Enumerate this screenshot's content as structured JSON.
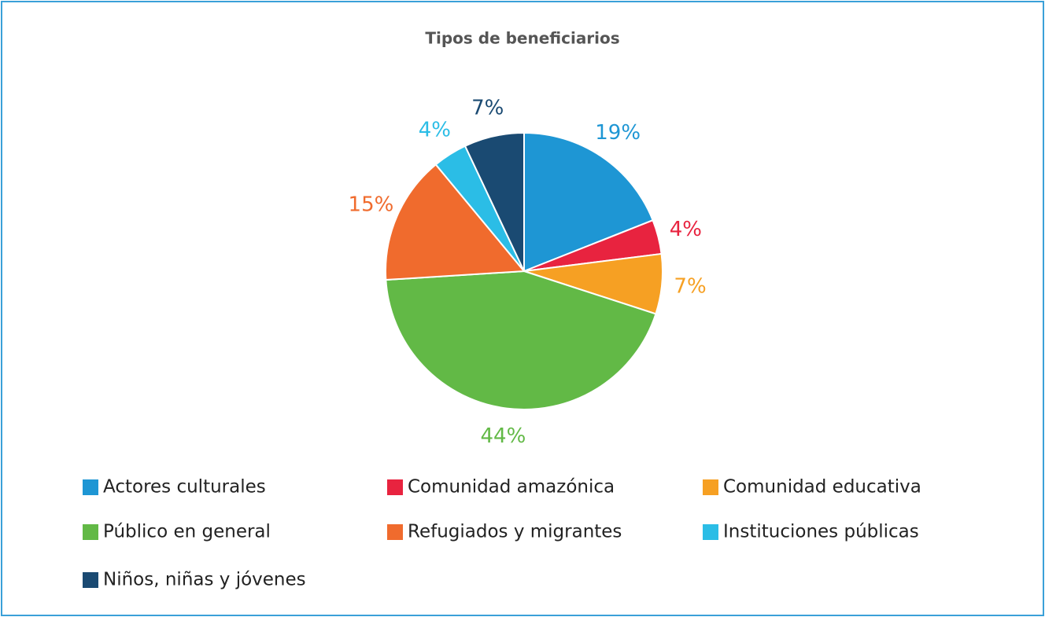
{
  "chart_data": {
    "type": "pie",
    "title": "Tipos de beneficiarios",
    "categories": [
      "Actores culturales",
      "Comunidad amazónica",
      "Comunidad educativa",
      "Público en general",
      "Refugiados y migrantes",
      "Instituciones públicas",
      "Niños, niñas y jóvenes"
    ],
    "values": [
      19,
      4,
      7,
      44,
      15,
      4,
      7
    ],
    "value_labels": [
      "19%",
      "4%",
      "7%",
      "44%",
      "15%",
      "4%",
      "7%"
    ],
    "colors": [
      "#1e96d4",
      "#e8233f",
      "#f6a023",
      "#62b946",
      "#f06b2d",
      "#2bbde6",
      "#1a4a72"
    ],
    "legend": "bottom"
  }
}
